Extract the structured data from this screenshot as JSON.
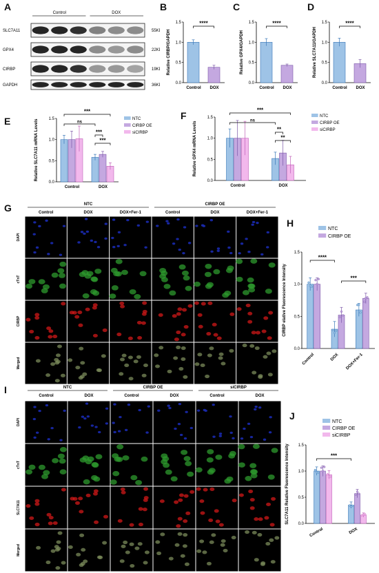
{
  "labels": {
    "A": "A",
    "B": "B",
    "C": "C",
    "D": "D",
    "E": "E",
    "F": "F",
    "G": "G",
    "H": "H",
    "I": "I",
    "J": "J"
  },
  "blot": {
    "groups": [
      "Control",
      "DOX"
    ],
    "rows": [
      {
        "name": "SLC7A11",
        "size": "55KD",
        "lanes": [
          0.95,
          0.95,
          0.9,
          0.55,
          0.5,
          0.5
        ]
      },
      {
        "name": "GPX4",
        "size": "22KD",
        "lanes": [
          0.95,
          0.95,
          0.95,
          0.5,
          0.45,
          0.5
        ]
      },
      {
        "name": "CIRBP",
        "size": "19KD",
        "lanes": [
          0.95,
          0.95,
          0.9,
          0.45,
          0.45,
          0.4
        ]
      },
      {
        "name": "GAPDH",
        "size": "36KD",
        "lanes": [
          0.95,
          0.95,
          0.95,
          0.95,
          0.95,
          0.95
        ]
      }
    ]
  },
  "micro_g": {
    "groups": [
      "NTC",
      "CIRBP OE"
    ],
    "cols": [
      "Control",
      "DOX",
      "DOX+Fer-1",
      "Control",
      "DOX",
      "DOX+Fer-1"
    ],
    "rows": [
      "DAPI",
      "cTnT",
      "CIRBP",
      "Merged"
    ],
    "rowColors": [
      "#1a2ab0",
      "#2e9a2e",
      "#d01818",
      "#7a8a5a"
    ]
  },
  "micro_i": {
    "groups": [
      "NTC",
      "CIRBP OE",
      "siCIRBP"
    ],
    "cols": [
      "Control",
      "DOX",
      "Control",
      "DOX",
      "Control",
      "DOX"
    ],
    "rows": [
      "DAPI",
      "cTnT",
      "SLC7A11",
      "Merged"
    ],
    "rowColors": [
      "#1a2ab0",
      "#2e9a2e",
      "#d01818",
      "#7a8a5a"
    ]
  },
  "chart_data": [
    {
      "id": "B",
      "type": "bar",
      "categories": [
        "Control",
        "DOX"
      ],
      "values": [
        1.0,
        0.38
      ],
      "errors": [
        0.06,
        0.05
      ],
      "ylabel": "Relative CIRBP/GAPDH",
      "ylim": [
        0,
        1.5
      ],
      "yticks": [
        "0.0",
        "0.5",
        "1.0",
        "1.5"
      ],
      "significance": "****",
      "colors": [
        "#9ec3e6",
        "#c4a8e0"
      ]
    },
    {
      "id": "C",
      "type": "bar",
      "categories": [
        "Control",
        "DOX"
      ],
      "values": [
        1.0,
        0.43
      ],
      "errors": [
        0.09,
        0.03
      ],
      "ylabel": "Relative GPX4/GAPDH",
      "ylim": [
        0,
        1.5
      ],
      "yticks": [
        "0.0",
        "0.5",
        "1.0",
        "1.5"
      ],
      "significance": "****",
      "colors": [
        "#9ec3e6",
        "#c4a8e0"
      ]
    },
    {
      "id": "D",
      "type": "bar",
      "categories": [
        "Control",
        "DOX"
      ],
      "values": [
        1.0,
        0.47
      ],
      "errors": [
        0.1,
        0.1
      ],
      "ylabel": "Relative SLC7A11/GAPDH",
      "ylim": [
        0,
        1.5
      ],
      "yticks": [
        "0.0",
        "0.5",
        "1.0",
        "1.5"
      ],
      "significance": "****",
      "colors": [
        "#9ec3e6",
        "#c4a8e0"
      ]
    },
    {
      "id": "E",
      "type": "bar",
      "categories": [
        "Control",
        "DOX"
      ],
      "ylabel": "Relative SLC7A11 mRNA Levels",
      "ylim": [
        0,
        1.5
      ],
      "yticks": [
        "0.0",
        "0.5",
        "1.0",
        "1.5"
      ],
      "series": [
        {
          "name": "NTC",
          "values": [
            1.0,
            0.58
          ],
          "errors": [
            0.1,
            0.07
          ],
          "color": "#9ec3e6"
        },
        {
          "name": "CIRBP OE",
          "values": [
            1.0,
            0.65
          ],
          "errors": [
            0.2,
            0.07
          ],
          "color": "#c4a8e0"
        },
        {
          "name": "siCIRBP",
          "values": [
            1.02,
            0.37
          ],
          "errors": [
            0.3,
            0.08
          ],
          "color": "#f2b8ec"
        }
      ],
      "significance": [
        "ns",
        "***",
        "***",
        "***"
      ]
    },
    {
      "id": "F",
      "type": "bar",
      "categories": [
        "Control",
        "DOX"
      ],
      "ylabel": "Relative GPX4 mRNA Levels",
      "ylim": [
        0,
        1.5
      ],
      "yticks": [
        "0.0",
        "0.5",
        "1.0",
        "1.5"
      ],
      "series": [
        {
          "name": "NTC",
          "values": [
            1.0,
            0.52
          ],
          "errors": [
            0.22,
            0.15
          ],
          "color": "#9ec3e6"
        },
        {
          "name": "CIRBP OE",
          "values": [
            1.0,
            0.65
          ],
          "errors": [
            0.42,
            0.3
          ],
          "color": "#c4a8e0"
        },
        {
          "name": "siCIRBP",
          "values": [
            1.0,
            0.37
          ],
          "errors": [
            0.4,
            0.2
          ],
          "color": "#f2b8ec"
        }
      ],
      "significance": [
        "ns",
        "***",
        "**",
        "**"
      ]
    },
    {
      "id": "H",
      "type": "bar",
      "categories": [
        "Control",
        "DOX",
        "DOX+Fer-1"
      ],
      "ylabel": "CIRBP elative Fluorescence Intensity",
      "ylim": [
        0,
        1.5
      ],
      "yticks": [
        "0.0",
        "0.5",
        "1.0",
        "1.5"
      ],
      "series": [
        {
          "name": "NTC",
          "values": [
            1.0,
            0.3,
            0.6
          ],
          "errors": [
            0.1,
            0.12,
            0.1
          ],
          "color": "#9ec3e6"
        },
        {
          "name": "CIRBP OE",
          "values": [
            1.0,
            0.52,
            0.78
          ],
          "errors": [
            0.1,
            0.12,
            0.08
          ],
          "color": "#c4a8e0"
        }
      ],
      "significance": [
        "****",
        "***"
      ]
    },
    {
      "id": "J",
      "type": "bar",
      "categories": [
        "Control",
        "DOX"
      ],
      "ylabel": "SLC7A11 Relative Fluorescence Intensity",
      "ylim": [
        0,
        1.5
      ],
      "yticks": [
        "0.0",
        "0.5",
        "1.0",
        "1.5"
      ],
      "series": [
        {
          "name": "NTC",
          "values": [
            1.0,
            0.35
          ],
          "errors": [
            0.08,
            0.06
          ],
          "color": "#9ec3e6"
        },
        {
          "name": "CIRBP OE",
          "values": [
            1.0,
            0.57
          ],
          "errors": [
            0.1,
            0.08
          ],
          "color": "#c4a8e0"
        },
        {
          "name": "siCIRBP",
          "values": [
            0.93,
            0.16
          ],
          "errors": [
            0.08,
            0.04
          ],
          "color": "#f2b8ec"
        }
      ],
      "significance": [
        "***"
      ]
    }
  ]
}
